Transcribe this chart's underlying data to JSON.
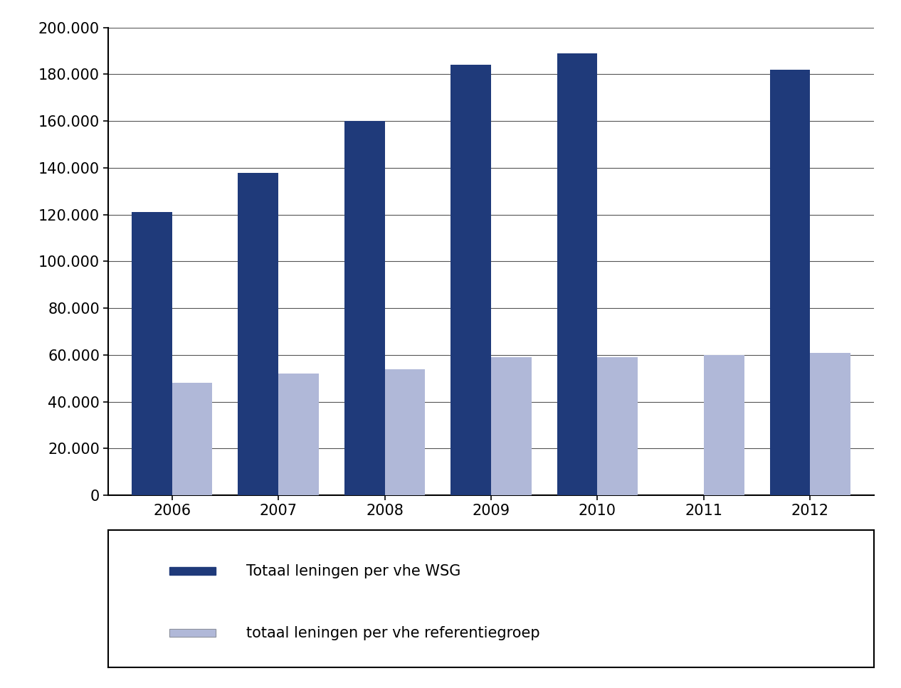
{
  "years": [
    "2006",
    "2007",
    "2008",
    "2009",
    "2010",
    "2011",
    "2012"
  ],
  "wsg_values": [
    121000,
    138000,
    160000,
    184000,
    189000,
    0,
    182000
  ],
  "ref_values": [
    48000,
    52000,
    54000,
    59000,
    59000,
    60000,
    61000
  ],
  "wsg_color": "#1F3A7A",
  "ref_color": "#B0B8D8",
  "ylim": [
    0,
    200000
  ],
  "yticks": [
    0,
    20000,
    40000,
    60000,
    80000,
    100000,
    120000,
    140000,
    160000,
    180000,
    200000
  ],
  "legend_wsg": "Totaal leningen per vhe WSG",
  "legend_ref": "totaal leningen per vhe referentiegroep",
  "bar_width": 0.38,
  "background_color": "#ffffff",
  "grid_color": "#555555",
  "tick_fontsize": 15,
  "legend_fontsize": 15
}
